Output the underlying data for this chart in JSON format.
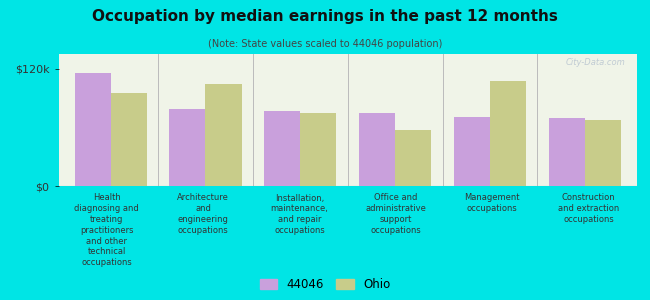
{
  "title": "Occupation by median earnings in the past 12 months",
  "subtitle": "(Note: State values scaled to 44046 population)",
  "background_color": "#00e5e5",
  "plot_bg_color": "#f0f4e8",
  "ylim": [
    0,
    135000
  ],
  "ytick_vals": [
    0,
    120000
  ],
  "ytick_labels": [
    "$0",
    "$120k"
  ],
  "categories": [
    "Health\ndiagnosing and\ntreating\npractitioners\nand other\ntechnical\noccupations",
    "Architecture\nand\nengineering\noccupations",
    "Installation,\nmaintenance,\nand repair\noccupations",
    "Office and\nadministrative\nsupport\noccupations",
    "Management\noccupations",
    "Construction\nand extraction\noccupations"
  ],
  "values_44046": [
    116000,
    79000,
    77000,
    75000,
    71000,
    70000
  ],
  "values_ohio": [
    95000,
    104000,
    75000,
    57000,
    107000,
    67000
  ],
  "color_44046": "#c9a0dc",
  "color_ohio": "#c8cc8a",
  "legend_labels": [
    "44046",
    "Ohio"
  ],
  "watermark": "City-Data.com",
  "bar_width": 0.38
}
